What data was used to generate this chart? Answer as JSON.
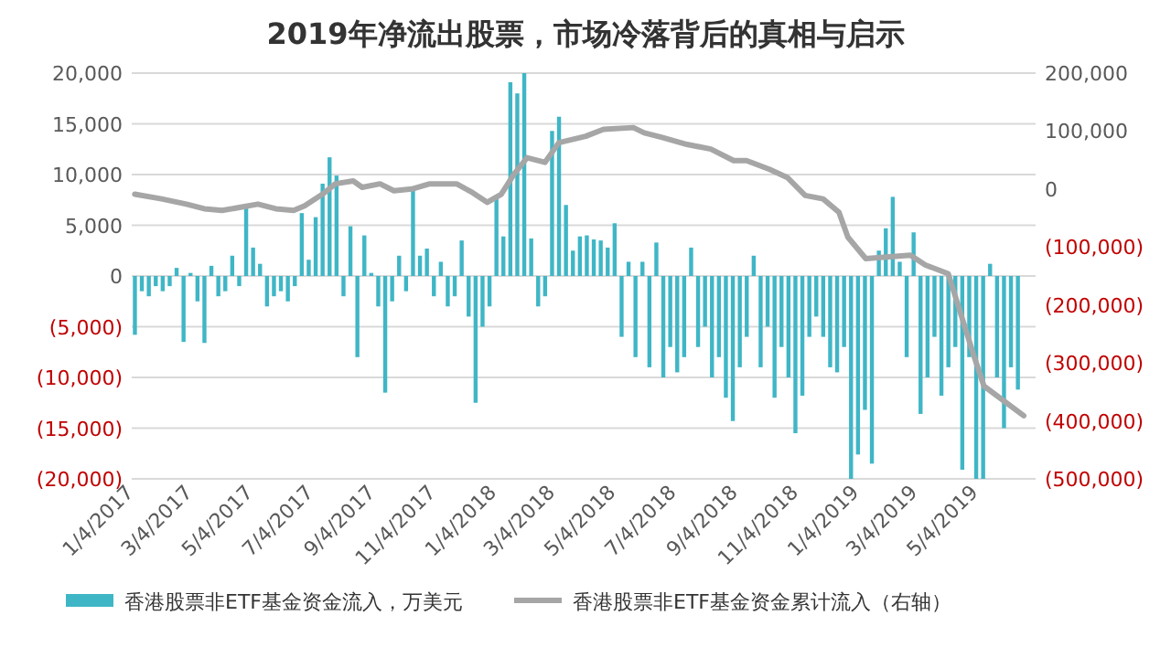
{
  "chart_data": {
    "type": "bar",
    "title": "2019年净流出股票，市场冷落背后的真相与启示",
    "xlim": [
      "2017-01-01",
      "2019-06-30"
    ],
    "xticks": [
      {
        "value": "2017-01-04",
        "label": "1/4/2017"
      },
      {
        "value": "2017-03-04",
        "label": "3/4/2017"
      },
      {
        "value": "2017-05-04",
        "label": "5/4/2017"
      },
      {
        "value": "2017-07-04",
        "label": "7/4/2017"
      },
      {
        "value": "2017-09-04",
        "label": "9/4/2017"
      },
      {
        "value": "2017-11-04",
        "label": "11/4/2017"
      },
      {
        "value": "2018-01-04",
        "label": "1/4/2018"
      },
      {
        "value": "2018-03-04",
        "label": "3/4/2018"
      },
      {
        "value": "2018-05-04",
        "label": "5/4/2018"
      },
      {
        "value": "2018-07-04",
        "label": "7/4/2018"
      },
      {
        "value": "2018-09-04",
        "label": "9/4/2018"
      },
      {
        "value": "2018-11-04",
        "label": "11/4/2018"
      },
      {
        "value": "2019-01-04",
        "label": "1/4/2019"
      },
      {
        "value": "2019-03-04",
        "label": "3/4/2019"
      },
      {
        "value": "2019-05-04",
        "label": "5/4/2019"
      }
    ],
    "ylim": [
      -20000,
      20000
    ],
    "yticks": [
      {
        "value": -20000,
        "label": "(20,000)"
      },
      {
        "value": -15000,
        "label": "(15,000)"
      },
      {
        "value": -10000,
        "label": "(10,000)"
      },
      {
        "value": -5000,
        "label": "(5,000)"
      },
      0,
      {
        "value": 5000,
        "label": "5,000"
      },
      {
        "value": 10000,
        "label": "10,000"
      },
      {
        "value": 15000,
        "label": "15,000"
      },
      {
        "value": 20000,
        "label": "20,000"
      }
    ],
    "y2lim": [
      -500000,
      200000
    ],
    "y2ticks": [
      {
        "value": -500000,
        "label": "(500,000)"
      },
      {
        "value": -400000,
        "label": "(400,000)"
      },
      {
        "value": -300000,
        "label": "(300,000)"
      },
      {
        "value": -200000,
        "label": "(200,000)"
      },
      {
        "value": -100000,
        "label": "(100,000)"
      },
      0,
      {
        "value": 100000,
        "label": "100,000"
      },
      {
        "value": 200000,
        "label": "200,000"
      }
    ],
    "grid": "y",
    "legend": "bottom",
    "series": [
      {
        "name": "香港股票非ETF基金资金流入，万美元",
        "color": "#3fb6c6",
        "x": [
          "2017-01-04",
          "2017-01-11",
          "2017-01-18",
          "2017-01-25",
          "2017-02-01",
          "2017-02-08",
          "2017-02-15",
          "2017-02-22",
          "2017-03-01",
          "2017-03-08",
          "2017-03-15",
          "2017-03-22",
          "2017-03-29",
          "2017-04-05",
          "2017-04-12",
          "2017-04-19",
          "2017-04-26",
          "2017-05-03",
          "2017-05-10",
          "2017-05-17",
          "2017-05-24",
          "2017-05-31",
          "2017-06-07",
          "2017-06-14",
          "2017-06-21",
          "2017-06-28",
          "2017-07-05",
          "2017-07-12",
          "2017-07-19",
          "2017-07-26",
          "2017-08-02",
          "2017-08-09",
          "2017-08-16",
          "2017-08-23",
          "2017-08-30",
          "2017-09-06",
          "2017-09-13",
          "2017-09-20",
          "2017-09-27",
          "2017-10-04",
          "2017-10-11",
          "2017-10-18",
          "2017-10-25",
          "2017-11-01",
          "2017-11-08",
          "2017-11-15",
          "2017-11-22",
          "2017-11-29",
          "2017-12-06",
          "2017-12-13",
          "2017-12-20",
          "2017-12-27",
          "2018-01-03",
          "2018-01-10",
          "2018-01-17",
          "2018-01-24",
          "2018-01-31",
          "2018-02-07",
          "2018-02-14",
          "2018-02-21",
          "2018-02-28",
          "2018-03-07",
          "2018-03-14",
          "2018-03-21",
          "2018-03-28",
          "2018-04-04",
          "2018-04-11",
          "2018-04-18",
          "2018-04-25",
          "2018-05-02",
          "2018-05-09",
          "2018-05-16",
          "2018-05-23",
          "2018-05-30",
          "2018-06-06",
          "2018-06-13",
          "2018-06-20",
          "2018-06-27",
          "2018-07-04",
          "2018-07-11",
          "2018-07-18",
          "2018-07-25",
          "2018-08-01",
          "2018-08-08",
          "2018-08-15",
          "2018-08-22",
          "2018-08-29",
          "2018-09-05",
          "2018-09-12",
          "2018-09-19",
          "2018-09-26",
          "2018-10-03",
          "2018-10-10",
          "2018-10-17",
          "2018-10-24",
          "2018-10-31",
          "2018-11-07",
          "2018-11-14",
          "2018-11-21",
          "2018-11-28",
          "2018-12-05",
          "2018-12-12",
          "2018-12-19",
          "2018-12-26",
          "2019-01-02",
          "2019-01-09",
          "2019-01-16",
          "2019-01-23",
          "2019-01-30",
          "2019-02-06",
          "2019-02-13",
          "2019-02-20",
          "2019-02-27",
          "2019-03-06",
          "2019-03-13",
          "2019-03-20",
          "2019-03-27",
          "2019-04-03",
          "2019-04-10",
          "2019-04-17",
          "2019-04-24",
          "2019-05-01",
          "2019-05-08",
          "2019-05-15",
          "2019-05-22",
          "2019-05-29",
          "2019-06-05",
          "2019-06-12"
        ],
        "values": [
          -5800,
          -1500,
          -2000,
          -1000,
          -1500,
          -1000,
          800,
          -6500,
          300,
          -2500,
          -6600,
          1000,
          -2000,
          -1500,
          2000,
          -1000,
          6800,
          2800,
          1200,
          -3000,
          -2000,
          -1500,
          -2500,
          -1000,
          6200,
          1600,
          5800,
          9100,
          11700,
          9900,
          -2000,
          4900,
          -8000,
          4000,
          300,
          -3000,
          -11500,
          -2500,
          2000,
          -1500,
          8800,
          2000,
          2700,
          -2000,
          1400,
          -3000,
          -2000,
          3500,
          -4000,
          -12500,
          -5000,
          -3000,
          7600,
          3900,
          19100,
          18000,
          20000,
          3700,
          -3000,
          -2000,
          14300,
          15700,
          7000,
          2500,
          3900,
          4000,
          3600,
          3500,
          2800,
          5200,
          -6000,
          1400,
          -8000,
          1400,
          -9000,
          3300,
          -10000,
          -7000,
          -9500,
          -8000,
          2800,
          -7000,
          -5000,
          -10000,
          -8000,
          -12000,
          -14300,
          -9000,
          -6000,
          2000,
          -9000,
          -5000,
          -12000,
          -7000,
          -10000,
          -15500,
          -11800,
          -6000,
          -4000,
          -6000,
          -9000,
          -9500,
          -7000,
          -20000,
          -17600,
          -13200,
          -18500,
          2500,
          4700,
          7800,
          1400,
          -8000,
          4300,
          -13600,
          -10000,
          -6000,
          -11800,
          -9000,
          -7000,
          -19100,
          -8000,
          -20000,
          -20000,
          1200,
          -10000,
          -15000,
          -9000,
          -11200
        ]
      },
      {
        "name": "香港股票非ETF基金资金累计流入（右轴）",
        "type": "line",
        "axis": "y2",
        "color": "#a6a6a6",
        "line_style": "solid",
        "marker": "none",
        "x": [
          "2017-01-04",
          "2017-01-31",
          "2017-02-25",
          "2017-03-15",
          "2017-04-02",
          "2017-04-22",
          "2017-05-08",
          "2017-05-26",
          "2017-06-13",
          "2017-06-24",
          "2017-07-12",
          "2017-07-25",
          "2017-08-12",
          "2017-08-21",
          "2017-09-08",
          "2017-09-22",
          "2017-10-10",
          "2017-10-28",
          "2017-11-24",
          "2017-12-10",
          "2017-12-25",
          "2018-01-08",
          "2018-01-21",
          "2018-02-03",
          "2018-02-21",
          "2018-03-07",
          "2018-04-03",
          "2018-04-21",
          "2018-05-21",
          "2018-06-01",
          "2018-06-19",
          "2018-07-14",
          "2018-08-07",
          "2018-08-30",
          "2018-09-12",
          "2018-10-05",
          "2018-10-23",
          "2018-11-10",
          "2018-11-28",
          "2018-12-14",
          "2018-12-23",
          "2019-01-10",
          "2019-02-03",
          "2019-02-24",
          "2019-03-11",
          "2019-04-03",
          "2019-04-28",
          "2019-05-09",
          "2019-06-18"
        ],
        "values": [
          -9000,
          -17000,
          -26000,
          -34000,
          -37000,
          -31000,
          -26000,
          -34000,
          -37000,
          -29000,
          -9000,
          9000,
          14000,
          3000,
          9000,
          -3000,
          0,
          9000,
          9000,
          -6000,
          -23000,
          -9000,
          26000,
          54000,
          46000,
          80000,
          91000,
          103000,
          106000,
          97000,
          89000,
          77000,
          69000,
          49000,
          49000,
          34000,
          20000,
          -11000,
          -17000,
          -40000,
          -83000,
          -120000,
          -117000,
          -114000,
          -131000,
          -146000,
          -283000,
          -340000,
          -391000
        ]
      }
    ]
  }
}
